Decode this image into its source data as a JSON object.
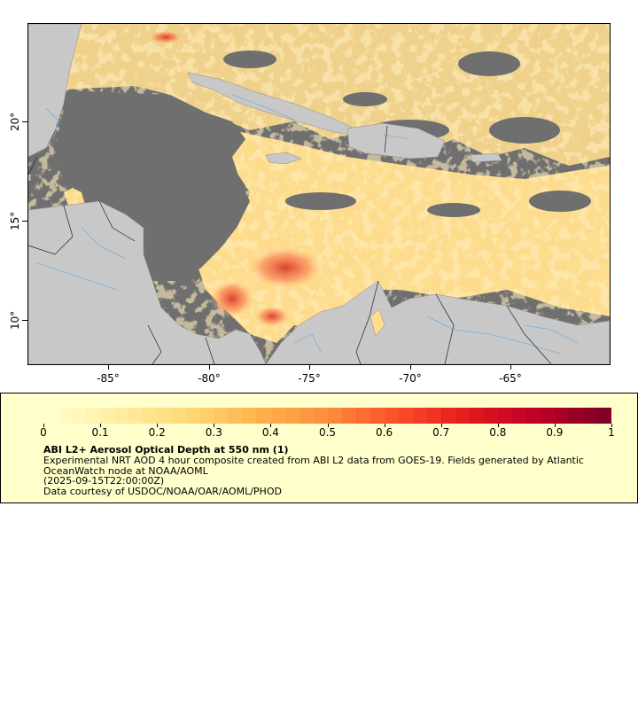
{
  "map": {
    "title": "ABI L2+ Aerosol Optical Depth at 550 nm (1)",
    "region": "Caribbean Sea and Central America",
    "x_ticks": [
      "-85°",
      "-80°",
      "-75°",
      "-70°",
      "-65°"
    ],
    "y_ticks": [
      "20°",
      "15°",
      "10°"
    ],
    "colors": {
      "ocean_missing": "#6f6f6f",
      "land": "#c8c8c8",
      "rivers": "#7ab0d8",
      "borders": "#222222",
      "aod_low": "#ffeda0",
      "aod_mid": "#fd8d3c",
      "aod_high": "#bd0026"
    }
  },
  "legend": {
    "colorbar_ticks": [
      "0",
      "0.1",
      "0.2",
      "0.3",
      "0.4",
      "0.5",
      "0.6",
      "0.7",
      "0.8",
      "0.9",
      "1"
    ],
    "colorbar_range": [
      0,
      1
    ],
    "title": "ABI L2+ Aerosol Optical Depth at 550 nm (1)",
    "description": "Experimental NRT AOD 4 hour composite created from ABI L2 data from GOES-19. Fields generated by Atlantic OceanWatch node at NOAA/AOML",
    "date": "(2025-09-15T22:00:00Z)",
    "credit": "Data courtesy of USDOC/NOAA/OAR/AOML/PHOD"
  }
}
